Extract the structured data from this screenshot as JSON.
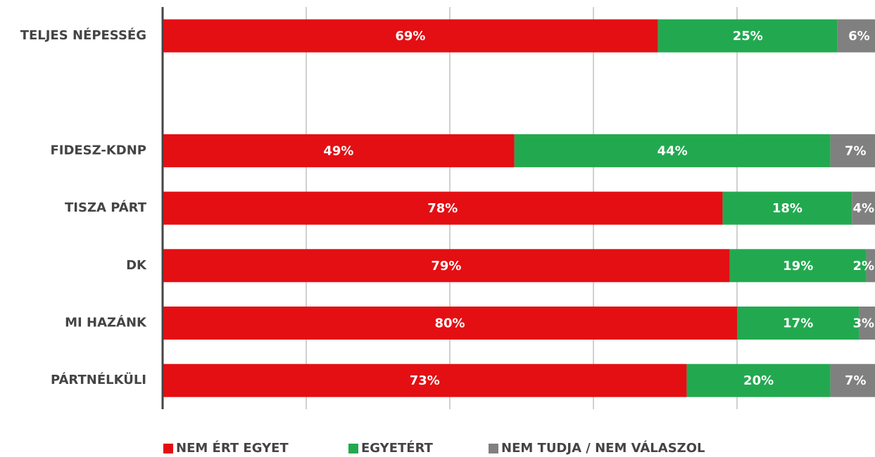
{
  "chart_data": {
    "type": "stacked-bar-horizontal",
    "categories": [
      "TELJES NÉPESSÉG",
      null,
      "FIDESZ-KDNP",
      "TISZA PÁRT",
      "DK",
      "MI HAZÁNK",
      "PÁRTNÉLKÜLI"
    ],
    "series": [
      {
        "name": "NEM ÉRT EGYET",
        "color": "#e30f13",
        "values": [
          69,
          null,
          49,
          78,
          79,
          80,
          73
        ],
        "value_labels": [
          "69%",
          null,
          "49%",
          "78%",
          "79%",
          "80%",
          "73%"
        ]
      },
      {
        "name": "EGYETÉRT",
        "color": "#22a94f",
        "values": [
          25,
          null,
          44,
          18,
          19,
          17,
          20
        ],
        "value_labels": [
          "25%",
          null,
          "44%",
          "18%",
          "19%",
          "17%",
          "20%"
        ]
      },
      {
        "name": "NEM TUDJA / NEM VÁLASZOL",
        "color": "#808080",
        "values": [
          6,
          null,
          7,
          4,
          2,
          3,
          7
        ],
        "value_labels": [
          "6%",
          null,
          "7%",
          "4%",
          "2%",
          "3%",
          "7%"
        ]
      }
    ],
    "xlim": [
      0,
      100
    ],
    "xticks": [
      0,
      20,
      40,
      60,
      80,
      100
    ],
    "grid": true,
    "legend": "bottom"
  }
}
